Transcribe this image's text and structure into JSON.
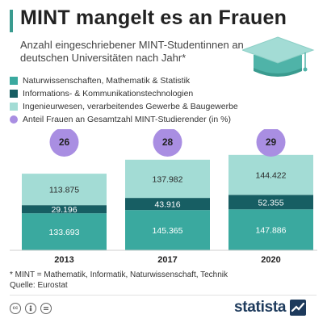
{
  "header": {
    "title": "MINT mangelt es an Frauen",
    "subtitle": "Anzahl eingeschriebener MINT-Studentinnen an deutschen Universitäten nach Jahr*"
  },
  "legend": [
    {
      "label": "Naturwissenschaften, Mathematik & Statistik",
      "color": "#3aa99f",
      "shape": "square"
    },
    {
      "label": "Informations- & Kommunikationstechnologien",
      "color": "#175e63",
      "shape": "square"
    },
    {
      "label": "Ingenieurwesen, verarbeitendes Gewerbe & Baugewerbe",
      "color": "#a3dcd5",
      "shape": "square"
    },
    {
      "label": "Anteil Frauen an Gesamtzahl MINT-Studierender (in %)",
      "color": "#a98ee2",
      "shape": "circle"
    }
  ],
  "chart_data": {
    "type": "bar",
    "stacked": true,
    "categories": [
      "2013",
      "2017",
      "2020"
    ],
    "series": [
      {
        "name": "Naturwissenschaften, Mathematik & Statistik",
        "values": [
          133693,
          145365,
          147886
        ],
        "labels": [
          "133.693",
          "145.365",
          "147.886"
        ],
        "color": "#3aa99f"
      },
      {
        "name": "Informations- & Kommunikationstechnologien",
        "values": [
          29196,
          43916,
          52355
        ],
        "labels": [
          "29.196",
          "43.916",
          "52.355"
        ],
        "color": "#175e63"
      },
      {
        "name": "Ingenieurwesen, verarbeitendes Gewerbe & Baugewerbe",
        "values": [
          113875,
          137982,
          144422
        ],
        "labels": [
          "113.875",
          "137.982",
          "144.422"
        ],
        "color": "#a3dcd5"
      }
    ],
    "share": {
      "name": "Anteil Frauen an Gesamtzahl MINT-Studierender (in %)",
      "values": [
        26,
        28,
        29
      ],
      "color": "#a98ee2"
    }
  },
  "footer": {
    "note": "* MINT = Mathematik, Informatik, Naturwissenschaft, Technik",
    "source": "Quelle: Eurostat",
    "icons": [
      "cc-icon",
      "attribution-icon",
      "no-derivatives-icon"
    ],
    "logo": "statista"
  }
}
